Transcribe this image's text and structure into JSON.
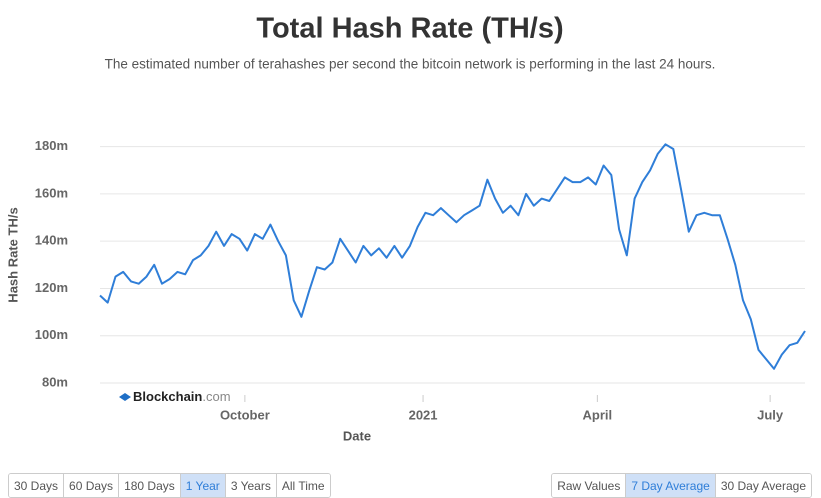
{
  "chart_data": {
    "type": "line",
    "title": "Total Hash Rate (TH/s)",
    "subtitle": "The estimated number of terahashes per second the bitcoin network is performing in the last 24 hours.",
    "x_label": "Date",
    "y_label": "Hash Rate TH/s",
    "watermark": {
      "brand": "Blockchain",
      "suffix": ".com"
    },
    "xlim": [
      0,
      91
    ],
    "xticks": [
      {
        "value": 18.7,
        "label": "October"
      },
      {
        "value": 41.7,
        "label": "2021"
      },
      {
        "value": 64.2,
        "label": "April"
      },
      {
        "value": 86.5,
        "label": "July"
      }
    ],
    "ylim": [
      80,
      190
    ],
    "yticks": [
      {
        "value": 80,
        "label": "80m"
      },
      {
        "value": 100,
        "label": "100m"
      },
      {
        "value": 120,
        "label": "120m"
      },
      {
        "value": 140,
        "label": "140m"
      },
      {
        "value": 160,
        "label": "160m"
      },
      {
        "value": 180,
        "label": "180m"
      }
    ],
    "grid": true,
    "series": [
      {
        "color": "#2f7ed8",
        "values": [
          117,
          114,
          125,
          127,
          123,
          122,
          125,
          130,
          122,
          124,
          127,
          126,
          132,
          134,
          138,
          144,
          138,
          143,
          141,
          136,
          143,
          141,
          147,
          140,
          134,
          115,
          108,
          119,
          129,
          128,
          131,
          141,
          136,
          131,
          138,
          134,
          137,
          133,
          138,
          133,
          138,
          146,
          152,
          151,
          154,
          151,
          148,
          151,
          153,
          155,
          166,
          158,
          152,
          155,
          151,
          160,
          155,
          158,
          157,
          162,
          167,
          165,
          165,
          167,
          164,
          172,
          168,
          145,
          134,
          158,
          165,
          170,
          177,
          181,
          179,
          162,
          144,
          151,
          152,
          151,
          151,
          141,
          130,
          115,
          107,
          94,
          90,
          86,
          92,
          96,
          97,
          102
        ]
      }
    ]
  },
  "controls": {
    "ranges": [
      "30 Days",
      "60 Days",
      "180 Days",
      "1 Year",
      "3 Years",
      "All Time"
    ],
    "selected_range": 3,
    "averages": [
      "Raw Values",
      "7 Day Average",
      "30 Day Average"
    ],
    "selected_average": 1
  }
}
